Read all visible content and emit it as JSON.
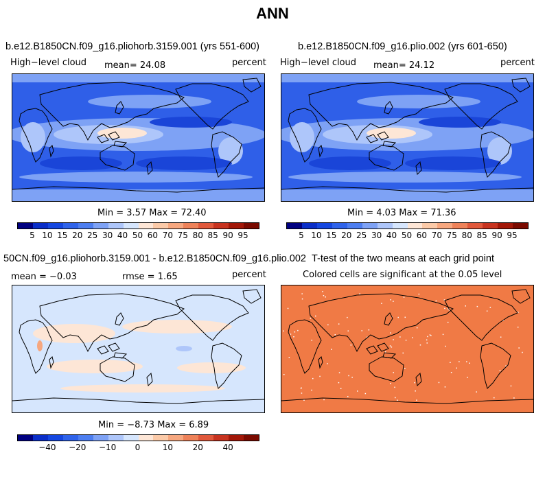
{
  "title": "ANN",
  "panels": {
    "a": {
      "title": "b.e12.B1850CN.f09_g16.pliohorb.3159.001 (yrs 551-600)",
      "left": "High−level cloud",
      "center": "mean=  24.08",
      "right": "percent",
      "minmax": "Min =   3.57 Max =  72.40"
    },
    "b": {
      "title": "b.e12.B1850CN.f09_g16.plio.002 (yrs 601-650)",
      "left": "High−level cloud",
      "center": "mean=  24.12",
      "right": "percent",
      "minmax": "Min =   4.03 Max =  71.36"
    },
    "c": {
      "title": "50CN.f09_g16.pliohorb.3159.001 - b.e12.B1850CN.f09_g16.plio.002",
      "left": "mean =  −0.03",
      "center": "rmse =   1.65",
      "right": "percent",
      "minmax": "Min =  −8.73 Max =   6.89"
    },
    "d": {
      "title": "T-test of the two means at each grid point",
      "subtitle": "Colored cells are significant at the 0.05 level"
    }
  },
  "colorbar_main": {
    "colors": [
      "#000080",
      "#0a2ec8",
      "#1547e0",
      "#2f63ea",
      "#4d7ef0",
      "#7ea2f5",
      "#aec6fa",
      "#d6e6fd",
      "#fde6d6",
      "#fbcaa8",
      "#f6a77f",
      "#ee8259",
      "#e0583b",
      "#c7331f",
      "#a21708",
      "#7a0a00"
    ],
    "labels": [
      "5",
      "10",
      "15",
      "20",
      "25",
      "30",
      "40",
      "50",
      "60",
      "70",
      "75",
      "80",
      "85",
      "90",
      "95"
    ]
  },
  "colorbar_diff": {
    "colors": [
      "#000080",
      "#0a2ec8",
      "#1547e0",
      "#2f63ea",
      "#4d7ef0",
      "#7ea2f5",
      "#aec6fa",
      "#d6e6fd",
      "#fde6d6",
      "#fbcaa8",
      "#f6a77f",
      "#ee8259",
      "#e0583b",
      "#c7331f",
      "#a21708",
      "#7a0a00"
    ],
    "labels": [
      "−40",
      "−20",
      "−10",
      "0",
      "10",
      "20",
      "40"
    ]
  },
  "colors": {
    "cloud_base": "#2f5fe8",
    "cloud_light": "#7ea2f5",
    "cloud_lighter": "#aec6fa",
    "cloud_dark": "#1a45d8",
    "warm": "#fde6d6",
    "diff_bg": "#d6e6fd",
    "ttest": "#f07a45"
  }
}
